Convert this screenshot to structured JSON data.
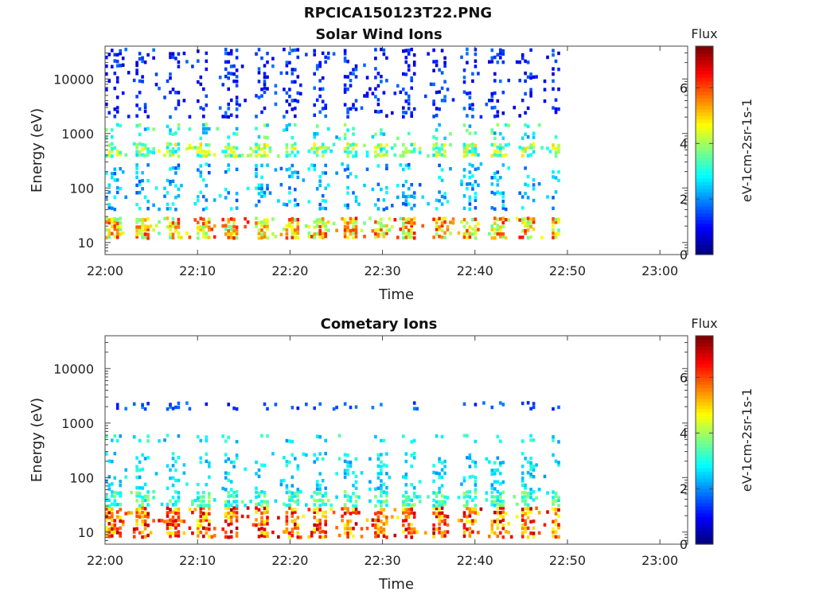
{
  "figure_title": "RPCICA150123T22.PNG",
  "chart_data": [
    {
      "type": "heatmap",
      "title": "Solar Wind Ions",
      "xlabel": "Time",
      "ylabel": "Energy (eV)",
      "yscale": "log",
      "ylim": [
        6,
        40000
      ],
      "xlim": [
        "22:00",
        "23:03"
      ],
      "x_ticks": [
        "22:00",
        "22:10",
        "22:20",
        "22:30",
        "22:40",
        "22:50",
        "23:00"
      ],
      "y_ticks": [
        "10",
        "100",
        "1000",
        "10000"
      ],
      "data_extent_x": [
        "22:00",
        "22:49"
      ],
      "colorbar": {
        "label": "Flux",
        "unit_label": "eV-1cm-2sr-1s-1",
        "ticks": [
          "0",
          "2",
          "4",
          "6"
        ],
        "range": [
          0,
          7.5
        ],
        "colormap": "jet"
      },
      "sweep_period_min": 3.2,
      "bands": [
        {
          "energy_range": [
            12,
            30
          ],
          "flux": [
            3.5,
            6.5
          ]
        },
        {
          "energy_range": [
            380,
            700
          ],
          "flux": [
            2.5,
            5.0
          ]
        },
        {
          "energy_range": [
            800,
            1600
          ],
          "flux": [
            2.0,
            4.0
          ]
        },
        {
          "energy_range": [
            40,
            300
          ],
          "flux": [
            1.5,
            3.0
          ]
        },
        {
          "energy_range": [
            2000,
            38000
          ],
          "flux": [
            0.5,
            1.8
          ]
        }
      ]
    },
    {
      "type": "heatmap",
      "title": "Cometary Ions",
      "xlabel": "Time",
      "ylabel": "Energy (eV)",
      "yscale": "log",
      "ylim": [
        6,
        40000
      ],
      "xlim": [
        "22:00",
        "23:03"
      ],
      "x_ticks": [
        "22:00",
        "22:10",
        "22:20",
        "22:30",
        "22:40",
        "22:50",
        "23:00"
      ],
      "y_ticks": [
        "10",
        "100",
        "1000",
        "10000"
      ],
      "data_extent_x": [
        "22:00",
        "22:49"
      ],
      "colorbar": {
        "label": "Flux",
        "unit_label": "eV-1cm-2sr-1s-1",
        "ticks": [
          "0",
          "2",
          "4",
          "6"
        ],
        "range": [
          0,
          7.5
        ],
        "colormap": "jet"
      },
      "sweep_period_min": 3.2,
      "bands": [
        {
          "energy_range": [
            8,
            30
          ],
          "flux": [
            4.5,
            7.2
          ]
        },
        {
          "energy_range": [
            30,
            60
          ],
          "flux": [
            2.5,
            4.0
          ]
        },
        {
          "energy_range": [
            60,
            300
          ],
          "flux": [
            2.0,
            3.2
          ]
        },
        {
          "energy_range": [
            450,
            650
          ],
          "flux": [
            2.0,
            3.5
          ]
        },
        {
          "energy_range": [
            1800,
            2600
          ],
          "flux": [
            1.0,
            2.0
          ]
        }
      ]
    }
  ]
}
